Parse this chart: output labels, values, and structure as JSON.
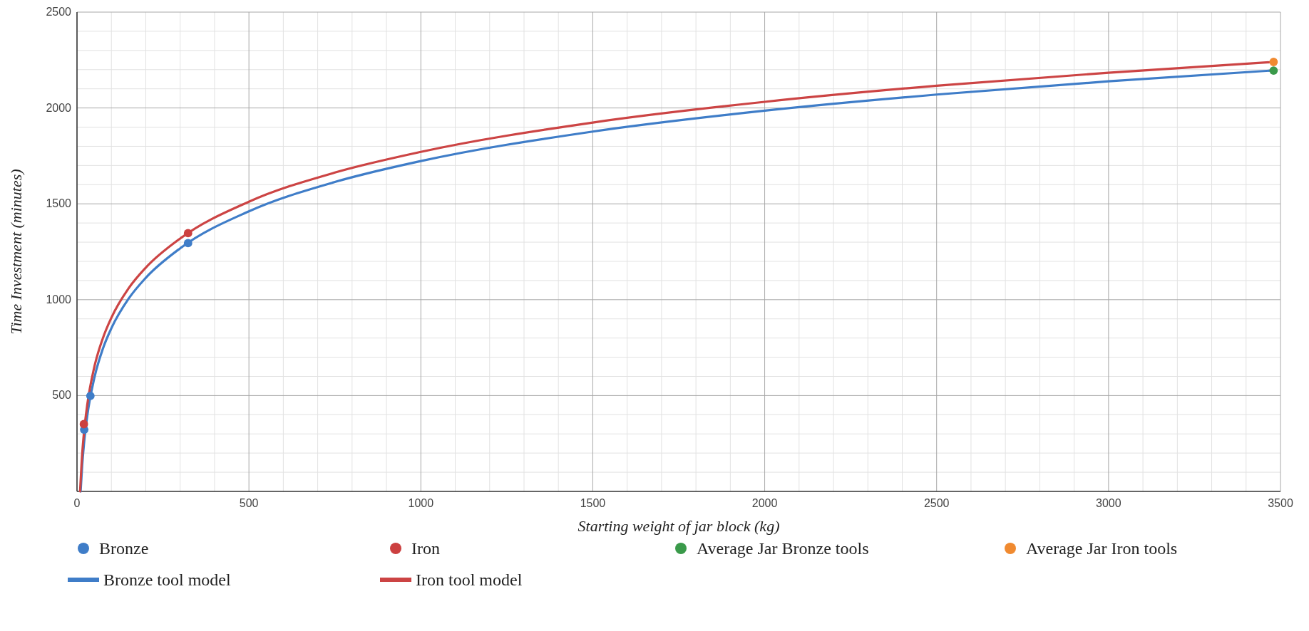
{
  "chart_data": {
    "type": "scatter",
    "xlabel": "Starting weight of jar block (kg)",
    "ylabel": "Time Investment (minutes)",
    "xlim": [
      0,
      3500
    ],
    "xticks": [
      0,
      500,
      1000,
      1500,
      2000,
      2500,
      3000,
      3500
    ],
    "ylim": [
      0,
      2500
    ],
    "yticks": [
      500,
      1000,
      1500,
      2000,
      2500
    ],
    "grid": true,
    "legend": "bottom",
    "series": [
      {
        "name": "Bronze",
        "marker": "circle",
        "color": "#3f7dc8",
        "x": [
          21,
          39,
          323
        ],
        "values": [
          322,
          498,
          1295
        ]
      },
      {
        "name": "Iron",
        "marker": "circle",
        "color": "#cc4040",
        "x": [
          20,
          323
        ],
        "values": [
          351,
          1347
        ]
      },
      {
        "name": "Average Jar Bronze tools",
        "marker": "circle",
        "color": "#3a9a4a",
        "x": [
          3480
        ],
        "values": [
          2195
        ]
      },
      {
        "name": "Average Jar Iron tools",
        "marker": "circle",
        "color": "#f08a30",
        "x": [
          3480
        ],
        "values": [
          2240
        ]
      },
      {
        "name": "Bronze tool model",
        "type": "line",
        "line_style": "solid",
        "color": "#3f7dc8",
        "x": [
          10.5,
          15,
          20,
          30,
          50,
          75,
          100,
          150,
          200,
          300,
          500,
          750,
          1000,
          1500,
          2000,
          2500,
          3000,
          3480
        ],
        "values": [
          0,
          133,
          242,
          396,
          589,
          743,
          851,
          1005,
          1114,
          1268,
          1461,
          1614,
          1723,
          1877,
          1986,
          2070,
          2139,
          2196
        ]
      },
      {
        "name": "Iron tool model",
        "type": "line",
        "line_style": "solid",
        "color": "#cc4444",
        "x": [
          9,
          15,
          20,
          30,
          50,
          75,
          100,
          150,
          200,
          300,
          500,
          750,
          1000,
          1500,
          2000,
          2500,
          3000,
          3480
        ],
        "values": [
          0,
          193,
          302,
          454,
          646,
          798,
          906,
          1059,
          1167,
          1319,
          1511,
          1663,
          1771,
          1924,
          2032,
          2116,
          2184,
          2240
        ]
      }
    ]
  }
}
